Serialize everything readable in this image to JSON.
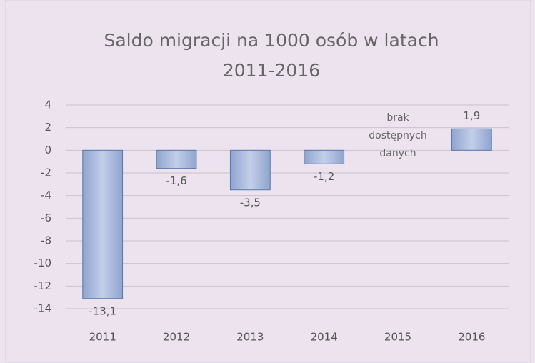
{
  "chart_data": {
    "type": "bar",
    "title": "Saldo migracji na 1000 osób w latach 2011-2016",
    "categories": [
      "2011",
      "2012",
      "2013",
      "2014",
      "2015",
      "2016"
    ],
    "values": [
      -13.1,
      -1.6,
      -3.5,
      -1.2,
      null,
      1.9
    ],
    "value_labels": [
      "-13,1",
      "-1,6",
      "-3,5",
      "-1,2",
      null,
      "1,9"
    ],
    "annotation": "brak dostępnych danych",
    "color": "#a9b9da",
    "ylim": [
      -14,
      4
    ],
    "yticks": [
      -14,
      -12,
      -10,
      -8,
      -6,
      -4,
      -2,
      0,
      2,
      4
    ],
    "grid": true
  }
}
